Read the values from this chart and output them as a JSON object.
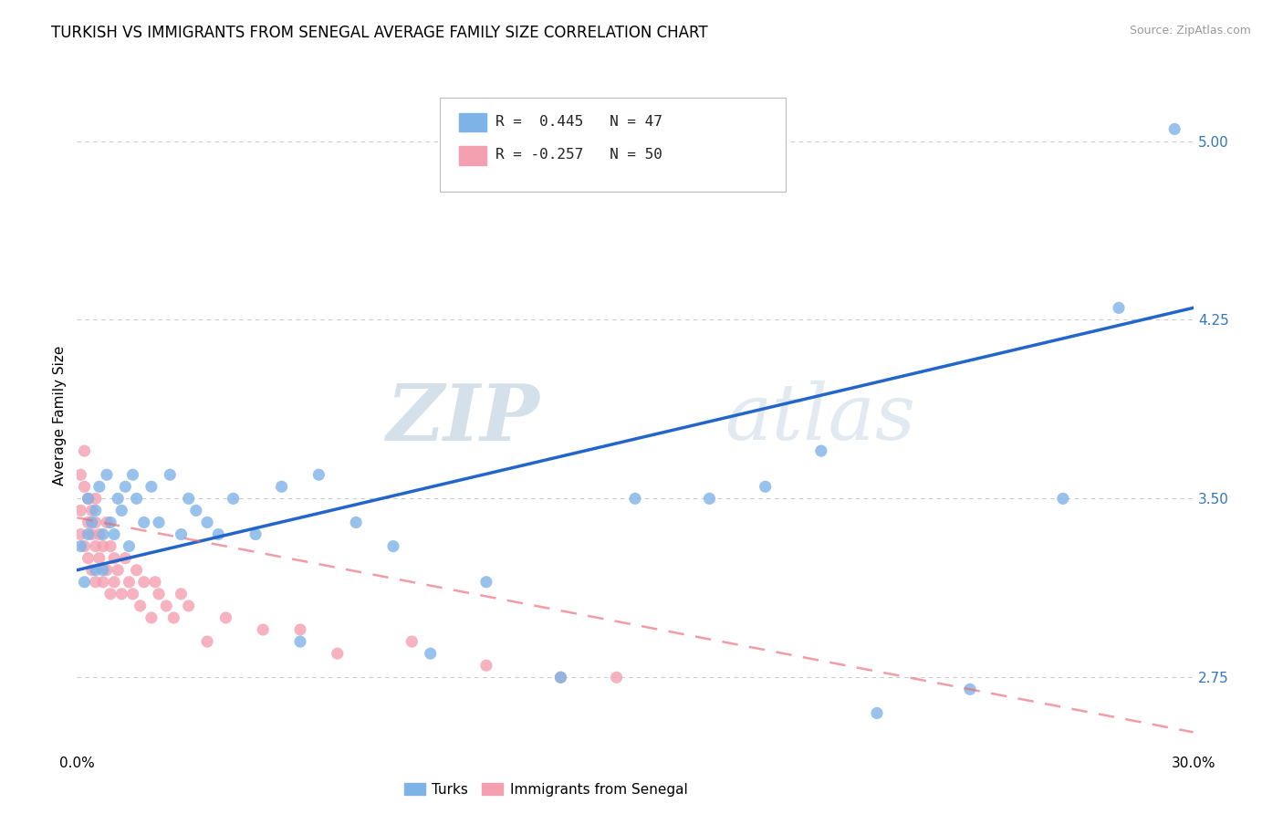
{
  "title": "TURKISH VS IMMIGRANTS FROM SENEGAL AVERAGE FAMILY SIZE CORRELATION CHART",
  "source": "Source: ZipAtlas.com",
  "ylabel": "Average Family Size",
  "xmin": 0.0,
  "xmax": 0.3,
  "ymin": 2.45,
  "ymax": 5.25,
  "right_yticks": [
    2.75,
    3.5,
    4.25,
    5.0
  ],
  "legend_blue_r": "R =  0.445",
  "legend_blue_n": "N = 47",
  "legend_pink_r": "R = -0.257",
  "legend_pink_n": "N = 50",
  "blue_color": "#7EB3E8",
  "pink_color": "#F4A0B0",
  "trend_blue": "#2266CC",
  "trend_pink": "#EE6677",
  "watermark_zip": "ZIP",
  "watermark_atlas": "atlas",
  "grid_color": "#CCCCCC",
  "background_color": "#FFFFFF",
  "blue_trend_x": [
    0.0,
    0.3
  ],
  "blue_trend_y": [
    3.2,
    4.3
  ],
  "pink_trend_x": [
    0.0,
    0.3
  ],
  "pink_trend_y": [
    3.42,
    2.52
  ],
  "turks_x": [
    0.001,
    0.002,
    0.003,
    0.003,
    0.004,
    0.005,
    0.005,
    0.006,
    0.007,
    0.007,
    0.008,
    0.009,
    0.01,
    0.011,
    0.012,
    0.013,
    0.014,
    0.015,
    0.016,
    0.018,
    0.02,
    0.022,
    0.025,
    0.028,
    0.03,
    0.032,
    0.035,
    0.038,
    0.042,
    0.048,
    0.055,
    0.06,
    0.065,
    0.075,
    0.085,
    0.095,
    0.11,
    0.13,
    0.15,
    0.17,
    0.185,
    0.2,
    0.215,
    0.24,
    0.265,
    0.28,
    0.295
  ],
  "turks_y": [
    3.3,
    3.15,
    3.5,
    3.35,
    3.4,
    3.2,
    3.45,
    3.55,
    3.2,
    3.35,
    3.6,
    3.4,
    3.35,
    3.5,
    3.45,
    3.55,
    3.3,
    3.6,
    3.5,
    3.4,
    3.55,
    3.4,
    3.6,
    3.35,
    3.5,
    3.45,
    3.4,
    3.35,
    3.5,
    3.35,
    3.55,
    2.9,
    3.6,
    3.4,
    3.3,
    2.85,
    3.15,
    2.75,
    3.5,
    3.5,
    3.55,
    3.7,
    2.6,
    2.7,
    3.5,
    4.3,
    5.05
  ],
  "senegal_x": [
    0.001,
    0.001,
    0.001,
    0.002,
    0.002,
    0.002,
    0.003,
    0.003,
    0.003,
    0.004,
    0.004,
    0.004,
    0.005,
    0.005,
    0.005,
    0.005,
    0.006,
    0.006,
    0.007,
    0.007,
    0.008,
    0.008,
    0.009,
    0.009,
    0.01,
    0.01,
    0.011,
    0.012,
    0.013,
    0.014,
    0.015,
    0.016,
    0.017,
    0.018,
    0.02,
    0.021,
    0.022,
    0.024,
    0.026,
    0.028,
    0.03,
    0.035,
    0.04,
    0.05,
    0.06,
    0.07,
    0.09,
    0.11,
    0.13,
    0.145
  ],
  "senegal_y": [
    3.45,
    3.6,
    3.35,
    3.55,
    3.3,
    3.7,
    3.4,
    3.25,
    3.5,
    3.35,
    3.2,
    3.45,
    3.3,
    3.15,
    3.4,
    3.5,
    3.25,
    3.35,
    3.15,
    3.3,
    3.2,
    3.4,
    3.1,
    3.3,
    3.25,
    3.15,
    3.2,
    3.1,
    3.25,
    3.15,
    3.1,
    3.2,
    3.05,
    3.15,
    3.0,
    3.15,
    3.1,
    3.05,
    3.0,
    3.1,
    3.05,
    2.9,
    3.0,
    2.95,
    2.95,
    2.85,
    2.9,
    2.8,
    2.75,
    2.75
  ]
}
